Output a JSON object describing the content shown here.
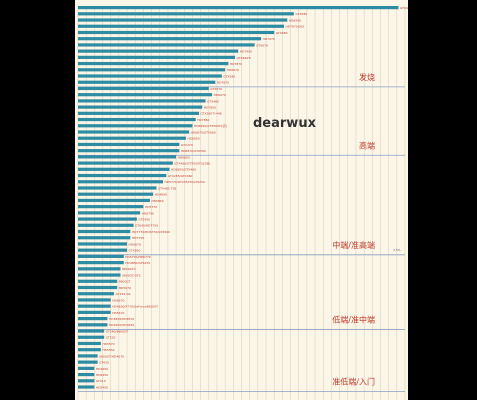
{
  "watermark": "dearwux",
  "side_note": "4.5%",
  "colors": {
    "bar": "#2e8ba4",
    "label": "#c0392b",
    "divider": "#8aa0c8",
    "grid": "#d9cdb2",
    "panel": "#fbf6e8"
  },
  "chart_data": {
    "type": "bar",
    "orientation": "horizontal",
    "xlim": [
      0,
      100
    ],
    "grid": true,
    "tiers": [
      {
        "name": "发烧",
        "from": 0,
        "to": 13
      },
      {
        "name": "高端",
        "from": 13,
        "to": 24
      },
      {
        "name": "中端/准高端",
        "from": 24,
        "to": 40
      },
      {
        "name": "低端/准中端",
        "from": 40,
        "to": 52
      },
      {
        "name": "准低端/入门",
        "from": 52,
        "to": 62
      }
    ],
    "categories": [
      "GTX480",
      "GTX580",
      "HD6990",
      "HD7970GHZ",
      "GTX680",
      "HD7970",
      "GTX670",
      "HD7950",
      "GTX660Ti",
      "HD7870",
      "HD6970",
      "GTX590",
      "HD7870",
      "GTX570",
      "HD6970",
      "GTX480",
      "HD7850",
      "GTX560Ti-448",
      "HD7850",
      "HD6950/GTX560Ti(高)",
      "HD6870/GTX560",
      "HD6850",
      "GTX470",
      "HD6870/GTX560",
      "HD6850",
      "GTX460/GTX550Ti(1GB)",
      "HD6850/GTX460",
      "GTX285/GTX460",
      "HD5770/GTX550Ti/GTS250",
      "GTX465 TSE",
      "HD4890",
      "HD5850",
      "HD5770",
      "HD6790",
      "GTS450",
      "GT640/HD7750",
      "HD7770/HD6770/GTX560",
      "HD7750",
      "HD6670",
      "GTX650",
      "HD5770/HD6770",
      "HD4850/GTS250",
      "8800GTX",
      "9800GT/GTS",
      "9600GT",
      "HD5670",
      "GT240 GS",
      "HD6570",
      "HD4830/4770/GeForce9800GT",
      "HD5670",
      "HD3850/HD6570",
      "HD2900/HD4670",
      "GT240/8800GT",
      "GT220",
      "HD5570",
      "HD5550",
      "9600GT/HD4670",
      "GT430",
      "HD4650",
      "HD6450",
      "GT210",
      "HD5450"
    ],
    "values": [
      98,
      66,
      64,
      63,
      60,
      56,
      54,
      49,
      48,
      46,
      45,
      44,
      42,
      40,
      41,
      39,
      38,
      37,
      36,
      35,
      34,
      33,
      31,
      31,
      30,
      29,
      28,
      27,
      26,
      24,
      23,
      22,
      20,
      19,
      18,
      17,
      16,
      16,
      15,
      15,
      14,
      14,
      13,
      13,
      12,
      12,
      11,
      10,
      10,
      10,
      9,
      9,
      8,
      8,
      7,
      7,
      6,
      6,
      5,
      5,
      5,
      5
    ]
  }
}
